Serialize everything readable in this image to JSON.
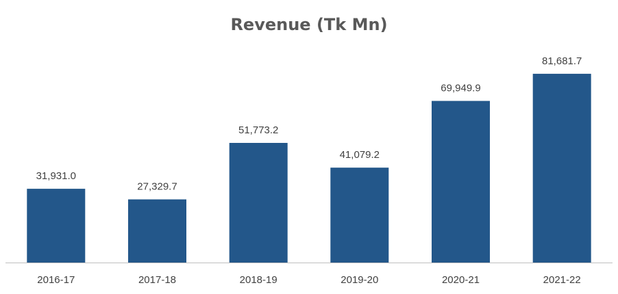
{
  "chart_data": {
    "type": "bar",
    "title": "Revenue (Tk Mn)",
    "xlabel": "",
    "ylabel": "",
    "categories": [
      "2016-17",
      "2017-18",
      "2018-19",
      "2019-20",
      "2020-21",
      "2021-22"
    ],
    "values": [
      31931.0,
      27329.7,
      51773.2,
      41079.2,
      69949.9,
      81681.7
    ],
    "value_labels": [
      "31,931.0",
      "27,329.7",
      "51,773.2",
      "41,079.2",
      "69,949.9",
      "81,681.7"
    ],
    "ylim": [
      0,
      100000
    ],
    "grid": false,
    "legend": "none",
    "bar_color": "#23578A",
    "axis_color": "#BFBFBF"
  }
}
